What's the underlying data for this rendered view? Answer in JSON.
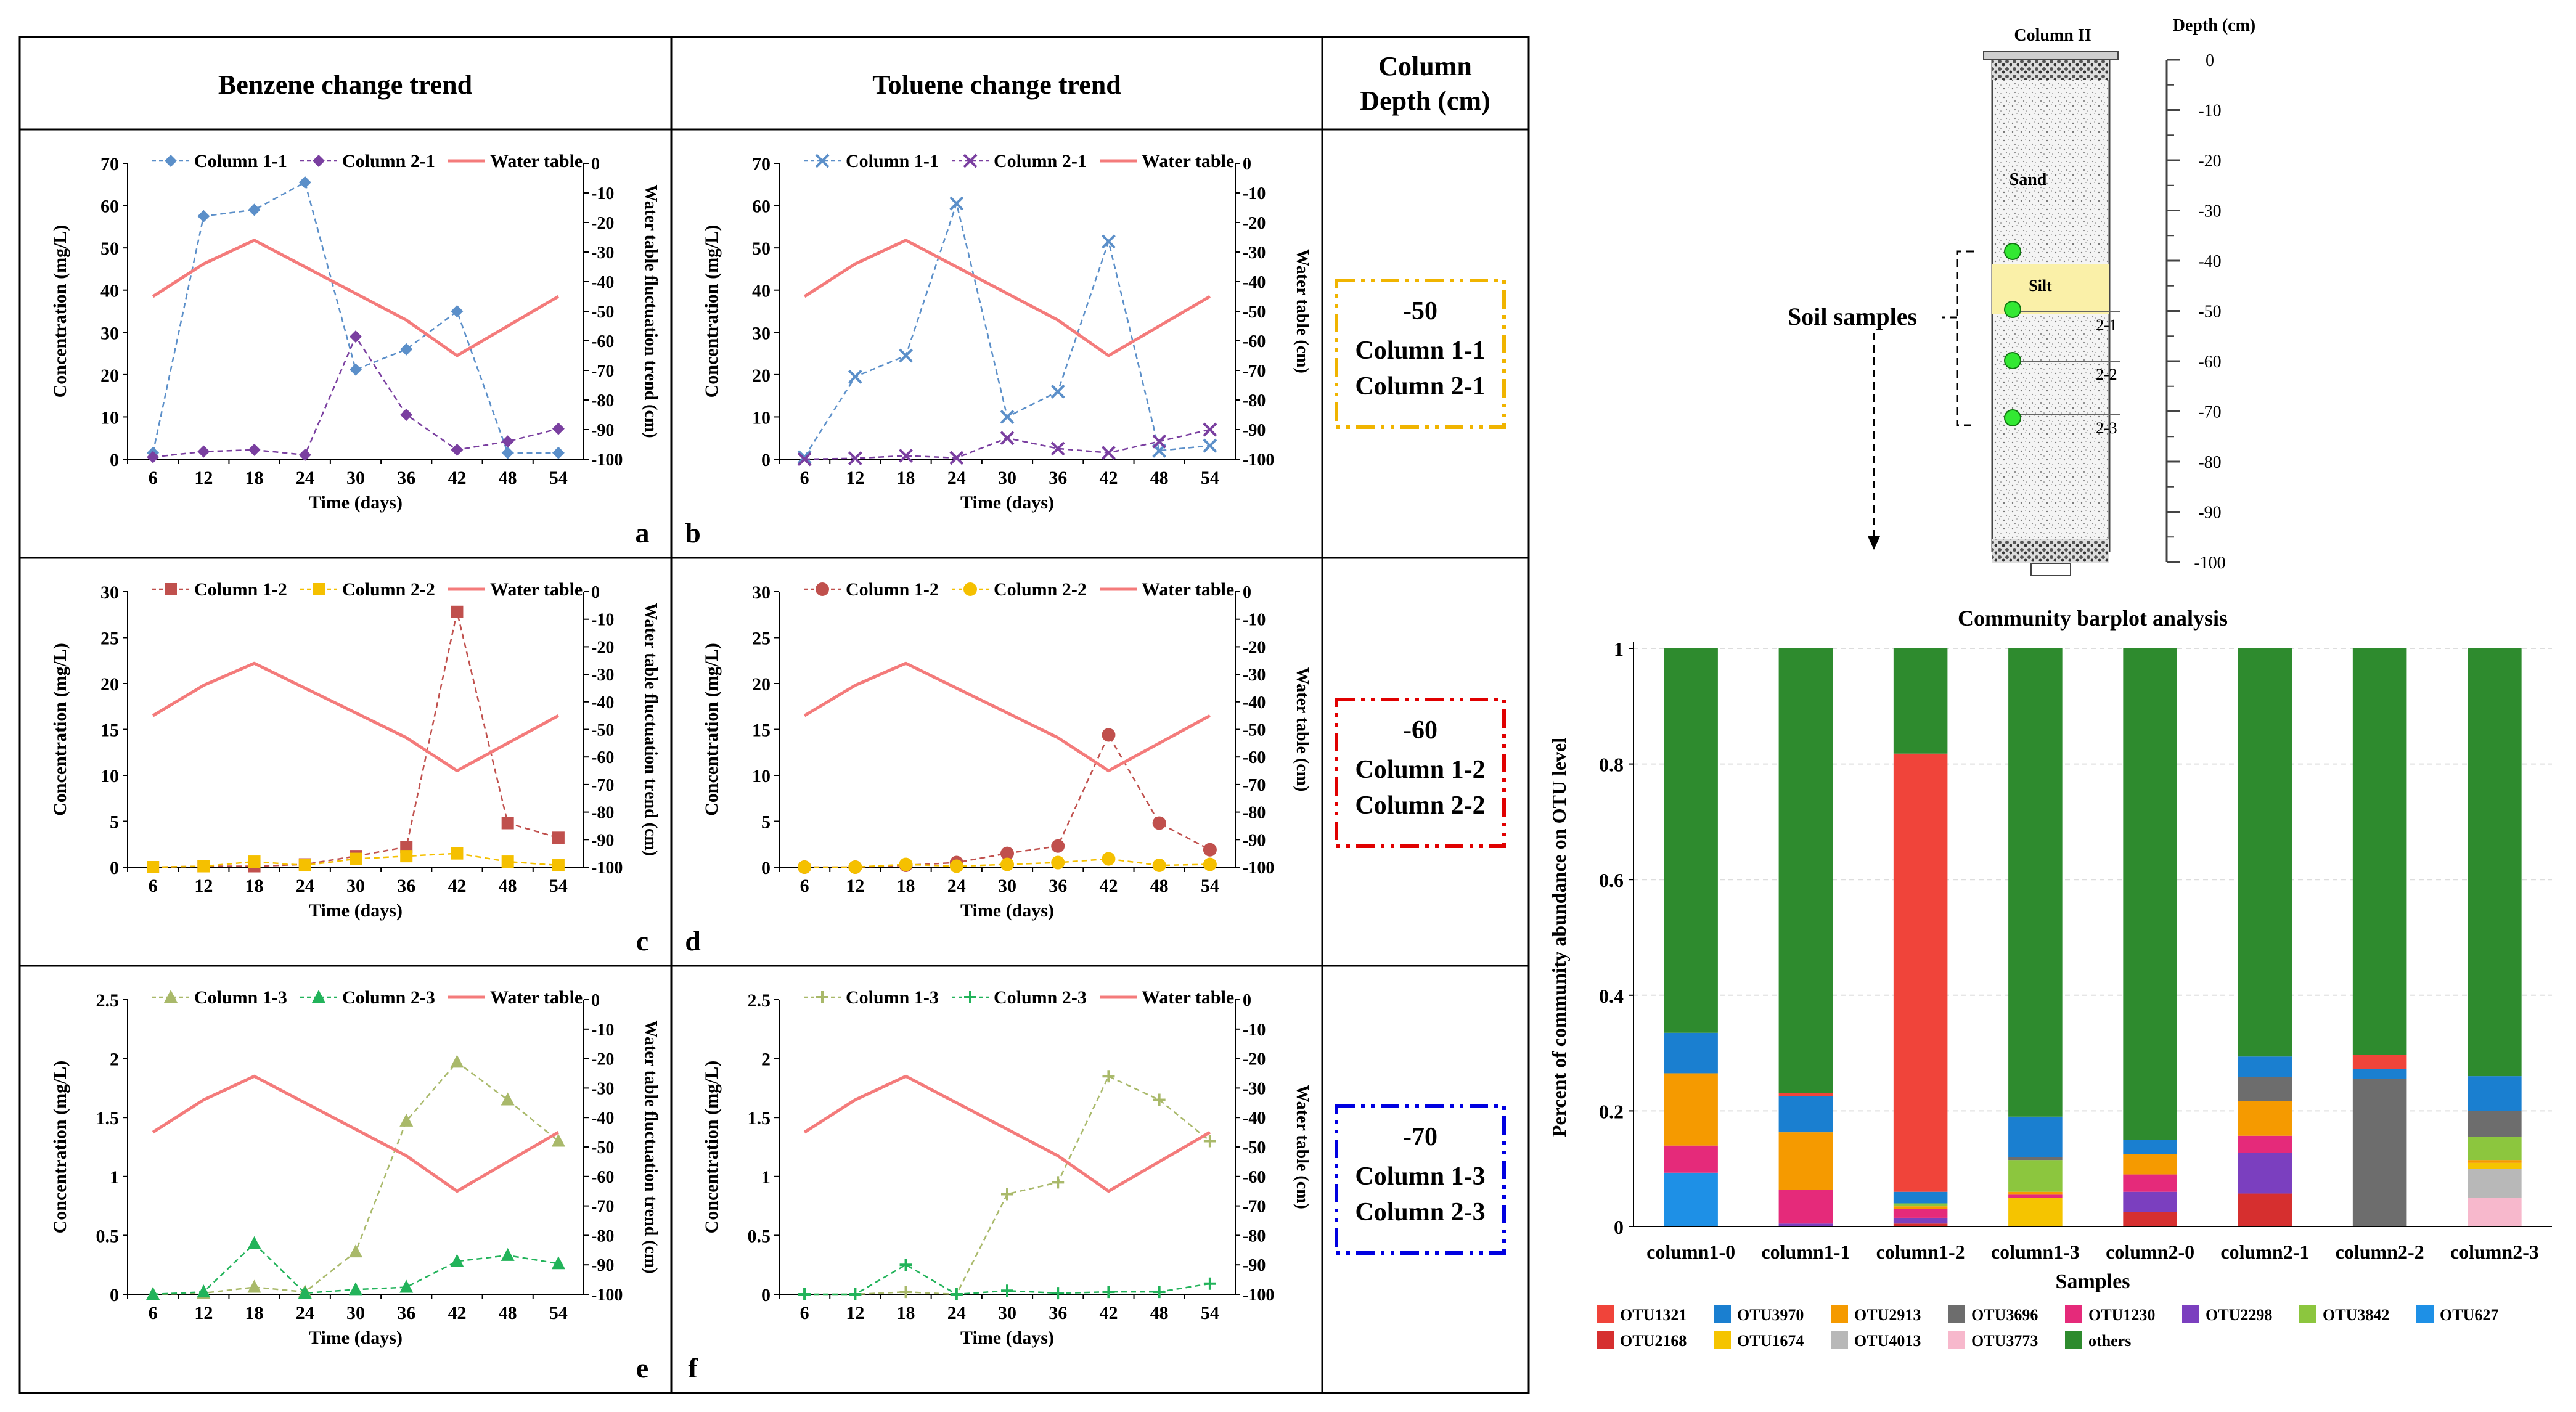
{
  "table": {
    "headers": [
      "Benzene change trend",
      "Toluene change trend",
      "Column",
      "Depth (cm)"
    ],
    "depth_boxes": [
      {
        "depth": "-50",
        "col_a": "Column 1-1",
        "col_b": "Column 2-1",
        "color": "#f0b400"
      },
      {
        "depth": "-60",
        "col_a": "Column 1-2",
        "col_b": "Column 2-2",
        "color": "#e00000"
      },
      {
        "depth": "-70",
        "col_a": "Column 1-3",
        "col_b": "Column 2-3",
        "color": "#0000e0"
      }
    ]
  },
  "column_diagram": {
    "title": "Column II",
    "depth_title": "Depth (cm)",
    "depth_ticks": [
      "0",
      "-10",
      "-20",
      "-30",
      "-40",
      "-50",
      "-60",
      "-70",
      "-80",
      "-90",
      "-100"
    ],
    "sand_label": "Sand",
    "silt_label": "Silt",
    "sample_labels": [
      "2-1",
      "2-2",
      "2-3"
    ],
    "soil_samples_label": "Soil samples"
  },
  "colors": {
    "col1_1": "#5b8fc9",
    "col2_1": "#7a3fa0",
    "col1_2": "#c0504d",
    "col2_2": "#f5c000",
    "col1_3": "#a9b96a",
    "col2_3": "#22b35a",
    "water": "#f47b7b"
  },
  "chart_data": [
    {
      "type": "line",
      "panel": "a",
      "xlabel": "Time (days)",
      "ylabel": "Concentration (mg/L)",
      "y2label": "Water table fluctuation trend (cm)",
      "x": [
        6,
        12,
        18,
        24,
        30,
        36,
        42,
        48,
        54
      ],
      "ylim": [
        0,
        70
      ],
      "yticks": [
        0,
        10,
        20,
        30,
        40,
        50,
        60,
        70
      ],
      "y2lim": [
        -100,
        0
      ],
      "y2ticks": [
        0,
        -10,
        -20,
        -30,
        -40,
        -50,
        -60,
        -70,
        -80,
        -90,
        -100
      ],
      "series": [
        {
          "name": "Column 1-1",
          "values": [
            1.5,
            57.5,
            59.0,
            65.5,
            21.2,
            26.0,
            35.0,
            1.5,
            1.5
          ],
          "marker": "diamond",
          "color": "#5b8fc9"
        },
        {
          "name": "Column 2-1",
          "values": [
            0.5,
            1.8,
            2.2,
            1.0,
            29.0,
            10.5,
            2.2,
            4.2,
            7.2
          ],
          "marker": "diamond",
          "color": "#7a3fa0"
        },
        {
          "name": "Water table",
          "values": [
            -45.0,
            -34.0,
            -26.0,
            -35.0,
            -44.0,
            -53.0,
            -65.0,
            -55.0,
            -45.0
          ],
          "axis": "y2",
          "color": "#f47b7b"
        }
      ]
    },
    {
      "type": "line",
      "panel": "b",
      "xlabel": "Time (days)",
      "ylabel": "Concentration (mg/L)",
      "y2label": "Water table (cm)",
      "x": [
        6,
        12,
        18,
        24,
        30,
        36,
        42,
        48,
        54
      ],
      "ylim": [
        0,
        70
      ],
      "yticks": [
        0,
        10,
        20,
        30,
        40,
        50,
        60,
        70
      ],
      "y2lim": [
        -100,
        0
      ],
      "y2ticks": [
        0,
        -10,
        -20,
        -30,
        -40,
        -50,
        -60,
        -70,
        -80,
        -90,
        -100
      ],
      "series": [
        {
          "name": "Column 1-1",
          "values": [
            0.5,
            19.5,
            24.5,
            60.5,
            10.0,
            16.0,
            51.5,
            2.0,
            3.2
          ],
          "marker": "x",
          "color": "#5b8fc9"
        },
        {
          "name": "Column 2-1",
          "values": [
            0.0,
            0.2,
            0.8,
            0.3,
            5.0,
            2.5,
            1.5,
            4.2,
            7.0
          ],
          "marker": "x",
          "color": "#7a3fa0"
        },
        {
          "name": "Water table",
          "values": [
            -45.0,
            -34.0,
            -26.0,
            -35.0,
            -44.0,
            -53.0,
            -65.0,
            -55.0,
            -45.0
          ],
          "axis": "y2",
          "color": "#f47b7b"
        }
      ]
    },
    {
      "type": "line",
      "panel": "c",
      "xlabel": "Time (days)",
      "ylabel": "Concentration (mg/L)",
      "y2label": "Water table fluctuation trend (cm)",
      "x": [
        6,
        12,
        18,
        24,
        30,
        36,
        42,
        48,
        54
      ],
      "ylim": [
        0,
        30
      ],
      "yticks": [
        0,
        5,
        10,
        15,
        20,
        25,
        30
      ],
      "y2lim": [
        -100,
        0
      ],
      "y2ticks": [
        0,
        -10,
        -20,
        -30,
        -40,
        -50,
        -60,
        -70,
        -80,
        -90,
        -100
      ],
      "series": [
        {
          "name": "Column 1-2",
          "values": [
            0.0,
            0.1,
            0.1,
            0.3,
            1.2,
            2.2,
            27.8,
            4.8,
            3.2
          ],
          "marker": "square",
          "color": "#c0504d"
        },
        {
          "name": "Column 2-2",
          "values": [
            0.0,
            0.1,
            0.6,
            0.2,
            0.9,
            1.2,
            1.5,
            0.6,
            0.2
          ],
          "marker": "square",
          "color": "#f5c000"
        },
        {
          "name": "Water table",
          "values": [
            -45.0,
            -34.0,
            -26.0,
            -35.0,
            -44.0,
            -53.0,
            -65.0,
            -55.0,
            -45.0
          ],
          "axis": "y2",
          "color": "#f47b7b"
        }
      ]
    },
    {
      "type": "line",
      "panel": "d",
      "xlabel": "Time (days)",
      "ylabel": "Concentration (mg/L)",
      "y2label": "Water table (cm)",
      "x": [
        6,
        12,
        18,
        24,
        30,
        36,
        42,
        48,
        54
      ],
      "ylim": [
        0,
        30
      ],
      "yticks": [
        0,
        5,
        10,
        15,
        20,
        25,
        30
      ],
      "y2lim": [
        -100,
        0
      ],
      "y2ticks": [
        0,
        -10,
        -20,
        -30,
        -40,
        -50,
        -60,
        -70,
        -80,
        -90,
        -100
      ],
      "series": [
        {
          "name": "Column 1-2",
          "values": [
            0.0,
            0.0,
            0.2,
            0.5,
            1.5,
            2.3,
            14.4,
            4.8,
            1.9
          ],
          "marker": "circle",
          "color": "#c0504d"
        },
        {
          "name": "Column 2-2",
          "values": [
            0.0,
            0.0,
            0.3,
            0.1,
            0.3,
            0.5,
            0.9,
            0.2,
            0.3
          ],
          "marker": "circle",
          "color": "#f5c000"
        },
        {
          "name": "Water table",
          "values": [
            -45.0,
            -34.0,
            -26.0,
            -35.0,
            -44.0,
            -53.0,
            -65.0,
            -55.0,
            -45.0
          ],
          "axis": "y2",
          "color": "#f47b7b"
        }
      ]
    },
    {
      "type": "line",
      "panel": "e",
      "xlabel": "Time (days)",
      "ylabel": "Concentration (mg/L)",
      "y2label": "Water table fluctuation trend (cm)",
      "x": [
        6,
        12,
        18,
        24,
        30,
        36,
        42,
        48,
        54
      ],
      "ylim": [
        0,
        2.5
      ],
      "yticks": [
        0,
        0.5,
        1,
        1.5,
        2,
        2.5
      ],
      "y2lim": [
        -100,
        0
      ],
      "y2ticks": [
        0,
        -10,
        -20,
        -30,
        -40,
        -50,
        -60,
        -70,
        -80,
        -90,
        -100
      ],
      "series": [
        {
          "name": "Column 1-3",
          "values": [
            0.0,
            0.01,
            0.06,
            0.02,
            0.36,
            1.47,
            1.97,
            1.65,
            1.3
          ],
          "marker": "triangle",
          "color": "#a9b96a"
        },
        {
          "name": "Column 2-3",
          "values": [
            0.0,
            0.02,
            0.43,
            0.01,
            0.04,
            0.06,
            0.28,
            0.33,
            0.26
          ],
          "marker": "triangle",
          "color": "#22b35a"
        },
        {
          "name": "Water table",
          "values": [
            -45.0,
            -34.0,
            -26.0,
            -35.0,
            -44.0,
            -53.0,
            -65.0,
            -55.0,
            -45.0
          ],
          "axis": "y2",
          "color": "#f47b7b"
        }
      ]
    },
    {
      "type": "line",
      "panel": "f",
      "xlabel": "Time (days)",
      "ylabel": "Concentration (mg/L)",
      "y2label": "Water table (cm)",
      "x": [
        6,
        12,
        18,
        24,
        30,
        36,
        42,
        48,
        54
      ],
      "ylim": [
        0,
        2.5
      ],
      "yticks": [
        0,
        0.5,
        1,
        1.5,
        2,
        2.5
      ],
      "y2lim": [
        -100,
        0
      ],
      "y2ticks": [
        0,
        -10,
        -20,
        -30,
        -40,
        -50,
        -60,
        -70,
        -80,
        -90,
        -100
      ],
      "series": [
        {
          "name": "Column 1-3",
          "values": [
            0.0,
            0.0,
            0.02,
            0.0,
            0.85,
            0.95,
            1.85,
            1.65,
            1.3
          ],
          "marker": "plus",
          "color": "#a9b96a"
        },
        {
          "name": "Column 2-3",
          "values": [
            0.0,
            0.0,
            0.25,
            0.0,
            0.03,
            0.01,
            0.02,
            0.02,
            0.09
          ],
          "marker": "plus",
          "color": "#22b35a"
        },
        {
          "name": "Water table",
          "values": [
            -45.0,
            -34.0,
            -26.0,
            -35.0,
            -44.0,
            -53.0,
            -65.0,
            -55.0,
            -45.0
          ],
          "axis": "y2",
          "color": "#f47b7b"
        }
      ]
    },
    {
      "type": "bar",
      "stacked": true,
      "title": "Community barplot analysis",
      "xlabel": "Samples",
      "ylabel": "Percent of community abundance on OTU level",
      "ylim": [
        0,
        1
      ],
      "yticks": [
        0,
        0.2,
        0.4,
        0.6,
        0.8,
        1
      ],
      "categories": [
        "column1-0",
        "column1-1",
        "column1-2",
        "column1-3",
        "column2-0",
        "column2-1",
        "column2-2",
        "column2-3"
      ],
      "series": [
        {
          "name": "OTU627",
          "color": "#1e90e6",
          "values": [
            0.093,
            0.0,
            0.0,
            0.0,
            0.0,
            0.0,
            0.0,
            0.0
          ]
        },
        {
          "name": "OTU3773",
          "color": "#f7b8cc",
          "values": [
            0.0,
            0.0,
            0.0,
            0.0,
            0.0,
            0.0,
            0.0,
            0.05
          ]
        },
        {
          "name": "OTU4013",
          "color": "#b8b8b8",
          "values": [
            0.0,
            0.0,
            0.0,
            0.0,
            0.0,
            0.0,
            0.0,
            0.05
          ]
        },
        {
          "name": "OTU1674",
          "color": "#f5c400",
          "values": [
            0.0,
            0.0,
            0.0,
            0.05,
            0.0,
            0.0,
            0.0,
            0.01
          ]
        },
        {
          "name": "OTU2168",
          "color": "#d62f2f",
          "values": [
            0.0,
            0.0,
            0.005,
            0.0,
            0.025,
            0.057,
            0.0,
            0.0
          ]
        },
        {
          "name": "OTU2298",
          "color": "#7b3fbf",
          "values": [
            0.0,
            0.005,
            0.01,
            0.0,
            0.035,
            0.07,
            0.0,
            0.0
          ]
        },
        {
          "name": "OTU1230",
          "color": "#e52a7a",
          "values": [
            0.047,
            0.058,
            0.015,
            0.005,
            0.03,
            0.03,
            0.0,
            0.0
          ]
        },
        {
          "name": "OTU2913",
          "color": "#f59a00",
          "values": [
            0.125,
            0.1,
            0.005,
            0.005,
            0.035,
            0.06,
            0.0,
            0.005
          ]
        },
        {
          "name": "OTU3842",
          "color": "#8cc63e",
          "values": [
            0.0,
            0.0,
            0.005,
            0.055,
            0.0,
            0.0,
            0.0,
            0.04
          ]
        },
        {
          "name": "OTU3696",
          "color": "#6d6d6d",
          "values": [
            0.0,
            0.0,
            0.0,
            0.005,
            0.0,
            0.042,
            0.255,
            0.045
          ]
        },
        {
          "name": "OTU3970",
          "color": "#1a7fd0",
          "values": [
            0.07,
            0.063,
            0.02,
            0.07,
            0.025,
            0.035,
            0.017,
            0.06
          ]
        },
        {
          "name": "OTU1321",
          "color": "#f0443a",
          "values": [
            0.0,
            0.005,
            0.758,
            0.0,
            0.0,
            0.0,
            0.025,
            0.0
          ]
        },
        {
          "name": "others",
          "color": "#2e8b2e",
          "values": [
            0.665,
            0.769,
            0.182,
            0.81,
            0.85,
            0.706,
            0.703,
            0.74
          ]
        }
      ],
      "legend_order": [
        "OTU1321",
        "OTU3970",
        "OTU2913",
        "OTU3696",
        "OTU1230",
        "OTU2298",
        "OTU3842",
        "OTU627",
        "OTU2168",
        "OTU1674",
        "OTU4013",
        "OTU3773",
        "others"
      ]
    }
  ]
}
